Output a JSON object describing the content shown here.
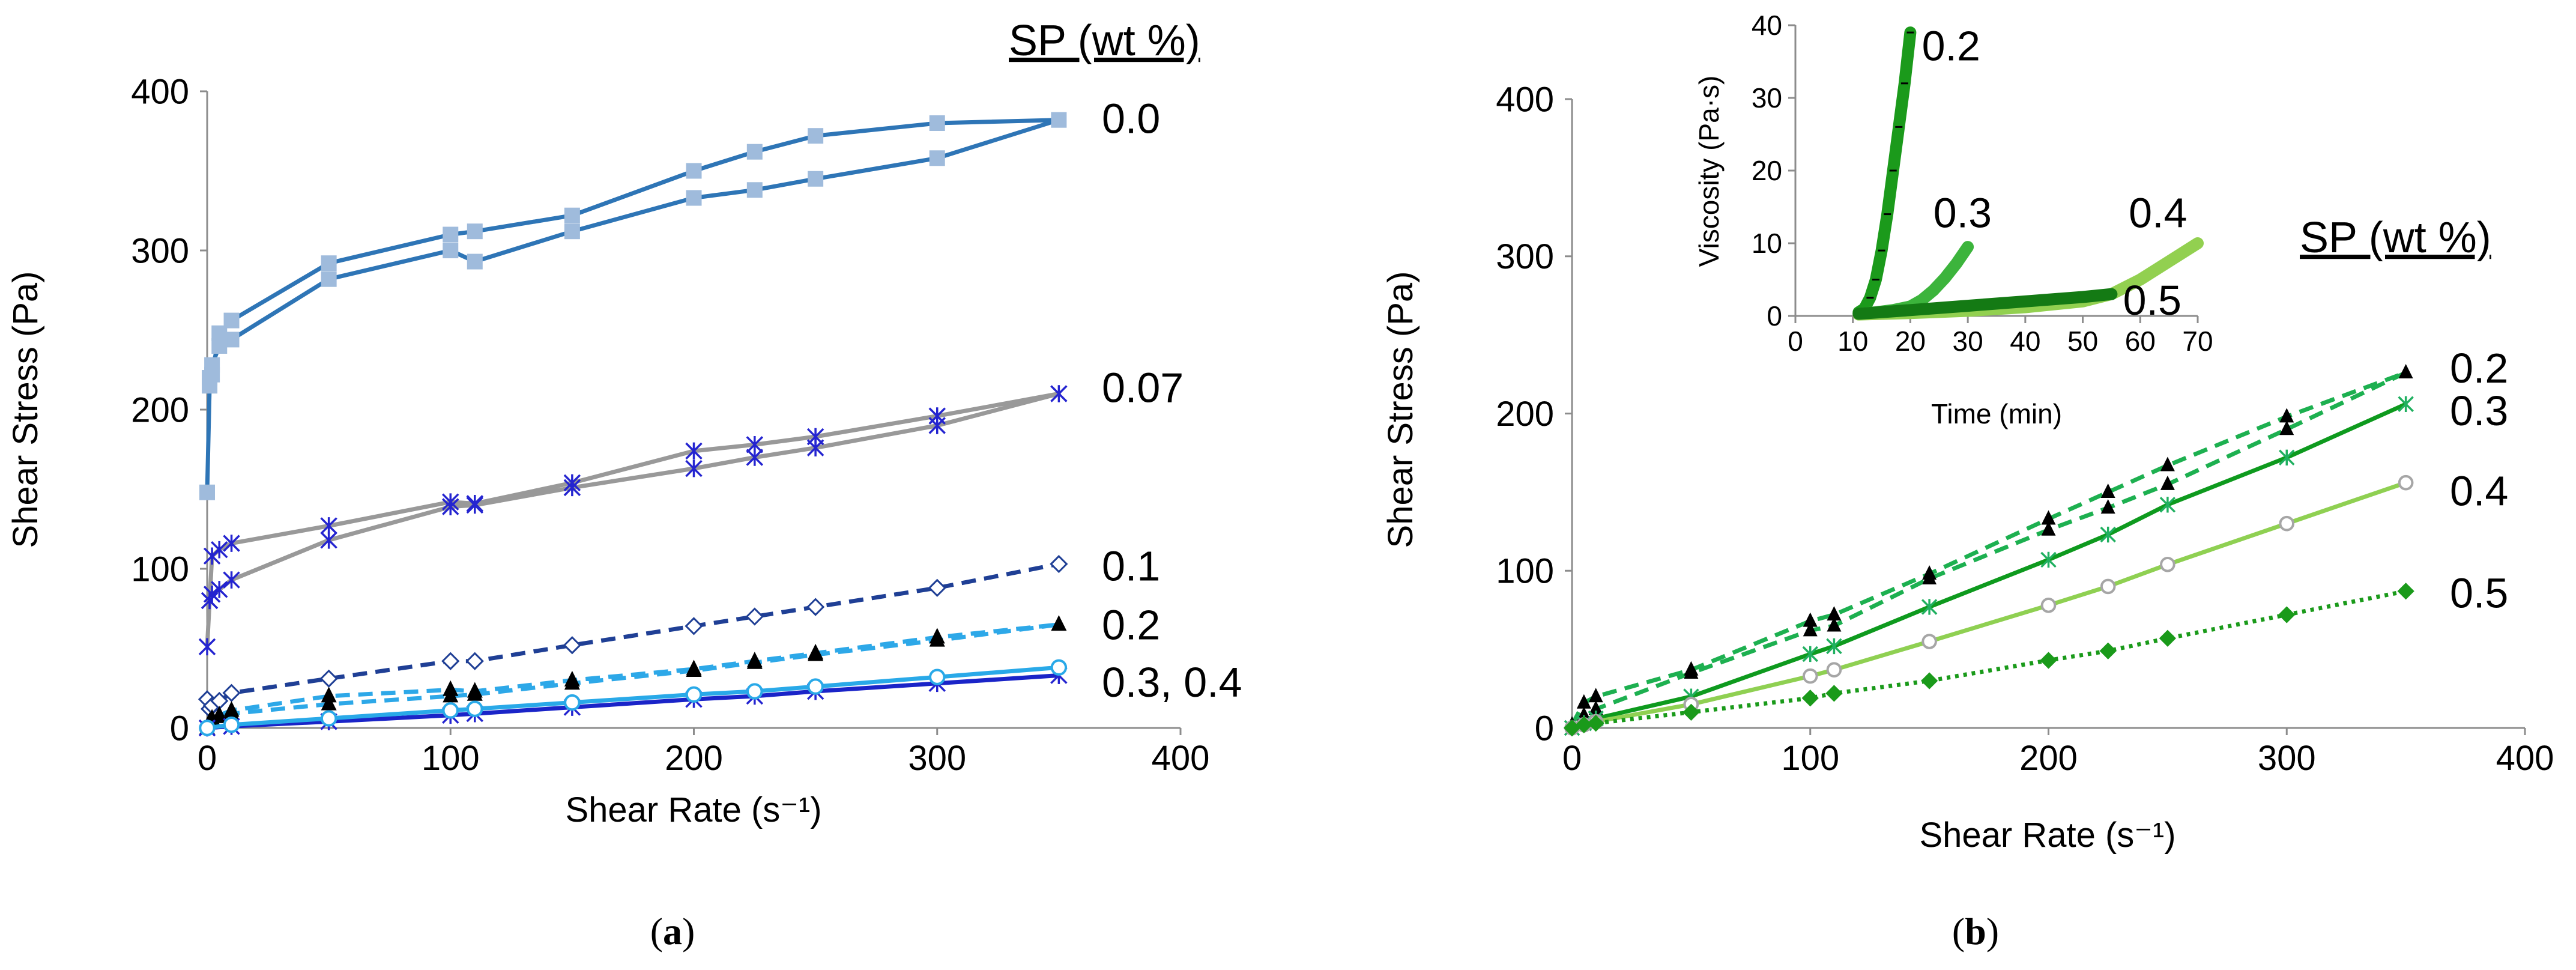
{
  "colors": {
    "panel_a": {
      "0.0": "#2e75b6",
      "0.07": "#999999",
      "0.1": "#1f3f95",
      "0.2": "#2da8e8",
      "0.3": "#1a24c8",
      "0.4": "#29a9e8"
    },
    "panel_a_markers": {
      "0.0": "#9fbbdc",
      "0.07": "#2424d0",
      "0.1": "#1f3f95",
      "0.2": "#000000",
      "0.3": "#2424d0",
      "0.4": "#29a9e8"
    },
    "panel_b": {
      "0.2": "#1db050",
      "0.3": "#0e9a1e",
      "0.4": "#8fd052",
      "0.5": "#1a9a1a"
    },
    "panel_b_markers": {
      "0.2": "#000000",
      "0.3": "#20b060",
      "0.4": "#a6a6a6",
      "0.5": "#1a9a1a"
    },
    "inset": {
      "0.2": "#1b9a1b",
      "0.3": "#3cb43c",
      "0.4": "#92d050",
      "0.5": "#147a14"
    }
  },
  "chart_data": [
    {
      "type": "line",
      "panel_label": "(a)",
      "panel_label_parts": {
        "open": "(",
        "letter": "a",
        "close": ")"
      },
      "xlabel": "Shear Rate (s⁻¹)",
      "ylabel": "Shear Stress (Pa)",
      "xlim": [
        0,
        400
      ],
      "ylim": [
        0,
        400
      ],
      "xticks": [
        "0",
        "100",
        "200",
        "300",
        "400"
      ],
      "yticks": [
        "0",
        "100",
        "200",
        "300",
        "400"
      ],
      "legend_title": "SP (wt %)",
      "series_labels": [
        {
          "text": "0.0",
          "y": 382
        },
        {
          "text": "0.07",
          "y": 213
        },
        {
          "text": "0.1",
          "y": 101
        },
        {
          "text": "0.2",
          "y": 64
        },
        {
          "text": "0.3, 0.4",
          "y": 28
        }
      ],
      "series": [
        {
          "name": "0.0",
          "marker": "square",
          "dash": "solid",
          "x": [
            0,
            1,
            2,
            5,
            10,
            50,
            100,
            110,
            150,
            200,
            225,
            250,
            300,
            350,
            300,
            250,
            225,
            200,
            150,
            110,
            100,
            50,
            10,
            5,
            2,
            1
          ],
          "y": [
            148,
            215,
            222,
            248,
            256,
            292,
            310,
            312,
            322,
            350,
            362,
            372,
            380,
            382,
            358,
            345,
            338,
            333,
            312,
            293,
            300,
            282,
            244,
            240,
            228,
            220
          ]
        },
        {
          "name": "0.07",
          "marker": "asterisk",
          "dash": "solid",
          "x": [
            0,
            1,
            2,
            5,
            10,
            50,
            100,
            110,
            150,
            200,
            225,
            250,
            300,
            350,
            300,
            250,
            225,
            200,
            150,
            110,
            100,
            50,
            10,
            5,
            2
          ],
          "y": [
            51,
            80,
            108,
            112,
            116,
            127,
            142,
            141,
            154,
            174,
            178,
            183,
            196,
            210,
            190,
            176,
            170,
            163,
            151,
            140,
            139,
            118,
            93,
            87,
            84
          ]
        },
        {
          "name": "0.1",
          "marker": "diamond",
          "dash": "dashed",
          "x": [
            0,
            1,
            2,
            5,
            10,
            50,
            100,
            110,
            150,
            200,
            225,
            250,
            300,
            350
          ],
          "y": [
            18,
            12,
            14,
            17,
            22,
            31,
            42,
            42,
            52,
            64,
            70,
            76,
            88,
            103
          ]
        },
        {
          "name": "0.2",
          "marker": "triangle",
          "dash": "dashed",
          "x": [
            0,
            1,
            2,
            5,
            10,
            50,
            100,
            110,
            150,
            200,
            225,
            250,
            300,
            350,
            300,
            250,
            225,
            200,
            150,
            110,
            100,
            50,
            10,
            5,
            2,
            1
          ],
          "y": [
            0,
            4,
            6,
            8,
            11,
            20,
            24,
            23,
            30,
            37,
            42,
            47,
            57,
            65,
            55,
            46,
            41,
            36,
            28,
            21,
            20,
            15,
            9,
            7,
            5,
            3
          ]
        },
        {
          "name": "0.3",
          "marker": "asterisk",
          "dash": "solid",
          "x": [
            0,
            10,
            50,
            100,
            110,
            150,
            200,
            225,
            250,
            300,
            350
          ],
          "y": [
            0,
            1,
            4,
            8,
            9,
            13,
            18,
            20,
            23,
            28,
            33
          ]
        },
        {
          "name": "0.4",
          "marker": "circle",
          "dash": "solid",
          "x": [
            0,
            10,
            50,
            100,
            110,
            150,
            200,
            225,
            250,
            300,
            350
          ],
          "y": [
            0,
            2,
            6,
            11,
            12,
            16,
            21,
            23,
            26,
            32,
            38
          ]
        }
      ]
    },
    {
      "type": "line",
      "panel_label": "(b)",
      "panel_label_parts": {
        "open": "(",
        "letter": "b",
        "close": ")"
      },
      "xlabel": "Shear Rate (s⁻¹)",
      "ylabel": "Shear Stress (Pa)",
      "xlim": [
        0,
        400
      ],
      "ylim": [
        0,
        400
      ],
      "xticks": [
        "0",
        "100",
        "200",
        "300",
        "400"
      ],
      "yticks": [
        "0",
        "100",
        "200",
        "300",
        "400"
      ],
      "legend_title": "SP (wt %)",
      "series_labels": [
        {
          "text": "0.2",
          "y": 228
        },
        {
          "text": "0.3",
          "y": 201
        },
        {
          "text": "0.4",
          "y": 150
        },
        {
          "text": "0.5",
          "y": 85
        }
      ],
      "series": [
        {
          "name": "0.2",
          "marker": "triangle",
          "dash": "dashed",
          "x": [
            0,
            5,
            10,
            50,
            100,
            110,
            150,
            200,
            225,
            250,
            300,
            350,
            300,
            250,
            225,
            200,
            150,
            110,
            100,
            50,
            10,
            5
          ],
          "y": [
            2,
            16,
            20,
            37,
            68,
            72,
            98,
            133,
            150,
            167,
            198,
            226,
            190,
            155,
            140,
            126,
            95,
            65,
            62,
            35,
            12,
            8
          ]
        },
        {
          "name": "0.3",
          "marker": "asterisk",
          "dash": "solid",
          "x": [
            0,
            5,
            10,
            50,
            100,
            110,
            150,
            200,
            225,
            250,
            300,
            350
          ],
          "y": [
            0,
            3,
            6,
            20,
            47,
            52,
            77,
            107,
            123,
            142,
            172,
            206
          ]
        },
        {
          "name": "0.4",
          "marker": "circle",
          "dash": "solid",
          "x": [
            0,
            5,
            10,
            50,
            100,
            110,
            150,
            200,
            225,
            250,
            300,
            350
          ],
          "y": [
            0,
            2,
            4,
            15,
            33,
            37,
            55,
            78,
            90,
            104,
            130,
            156
          ]
        },
        {
          "name": "0.5",
          "marker": "diamond",
          "dash": "dotted",
          "x": [
            0,
            5,
            10,
            50,
            100,
            110,
            150,
            200,
            225,
            250,
            300,
            350
          ],
          "y": [
            0,
            2,
            3,
            10,
            19,
            22,
            30,
            43,
            49,
            57,
            72,
            87
          ]
        }
      ]
    },
    {
      "type": "scatter",
      "role": "inset",
      "xlabel": "Time (min)",
      "ylabel": "Viscosity (Pa·s)",
      "xlim": [
        0,
        70
      ],
      "ylim": [
        0,
        40
      ],
      "xticks": [
        "0",
        "10",
        "20",
        "30",
        "40",
        "50",
        "60",
        "70"
      ],
      "yticks": [
        "0",
        "10",
        "20",
        "30",
        "40"
      ],
      "series_labels": [
        {
          "text": "0.2",
          "x": 22,
          "y": 37
        },
        {
          "text": "0.3",
          "x": 24,
          "y": 14
        },
        {
          "text": "0.4",
          "x": 58,
          "y": 14
        },
        {
          "text": "0.5",
          "x": 57,
          "y": 2
        }
      ],
      "series": [
        {
          "name": "0.2",
          "x": [
            11,
            12,
            13,
            14,
            15,
            16,
            17,
            18,
            19,
            20
          ],
          "y": [
            0.5,
            1,
            2.5,
            5,
            9,
            14,
            20,
            26,
            32,
            39
          ]
        },
        {
          "name": "0.3",
          "x": [
            11,
            14,
            17,
            20,
            22,
            24,
            26,
            28,
            30
          ],
          "y": [
            0.3,
            0.5,
            0.8,
            1.3,
            2.2,
            3.5,
            5.2,
            7.2,
            9.5
          ]
        },
        {
          "name": "0.4",
          "x": [
            11,
            20,
            30,
            40,
            50,
            55,
            60,
            65,
            70
          ],
          "y": [
            0.2,
            0.4,
            0.7,
            1.2,
            2,
            3,
            5,
            7.5,
            10
          ]
        },
        {
          "name": "0.5",
          "x": [
            11,
            20,
            30,
            40,
            50,
            55
          ],
          "y": [
            0.3,
            0.8,
            1.4,
            2.0,
            2.6,
            3.0
          ]
        }
      ]
    }
  ]
}
